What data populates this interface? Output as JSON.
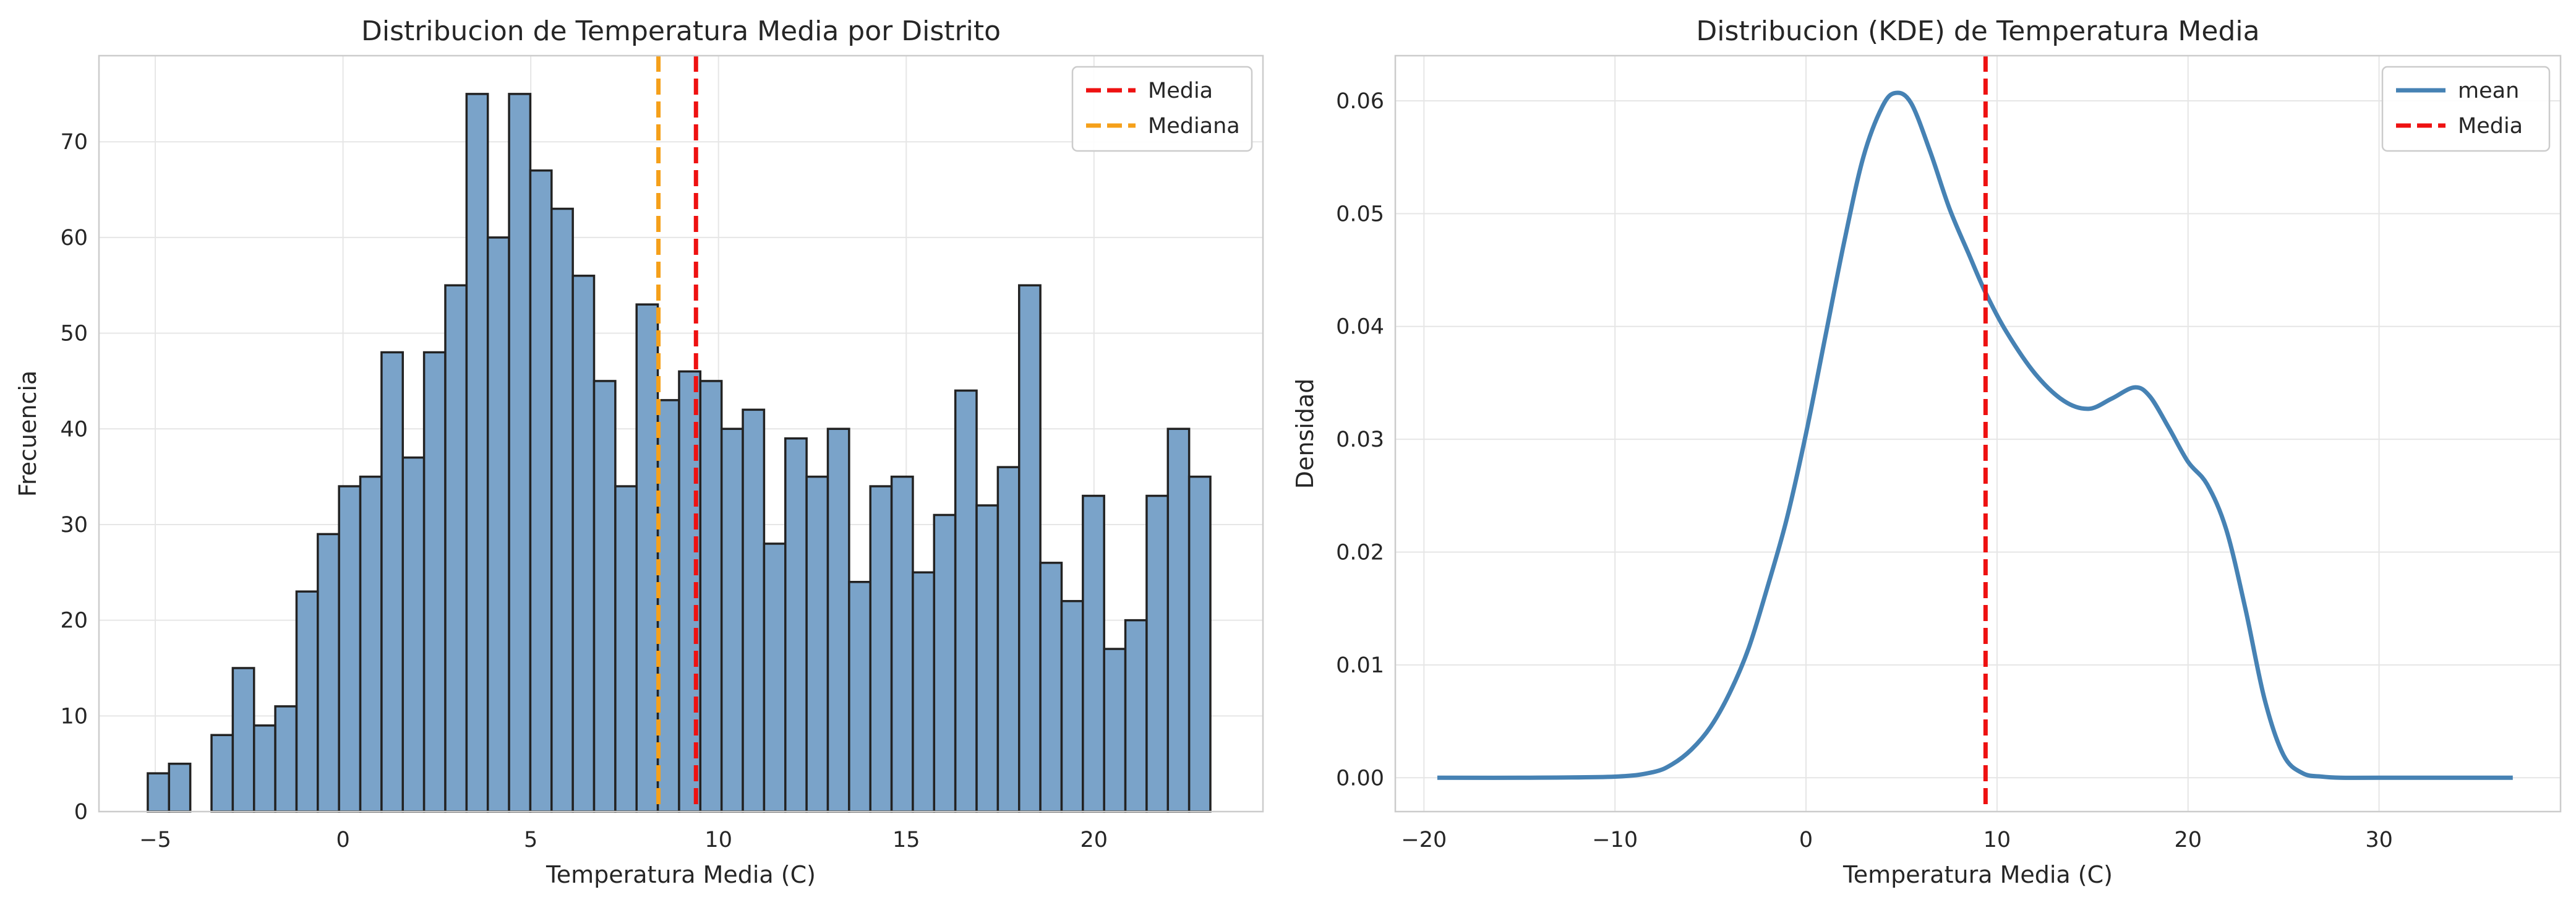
{
  "chart_data": [
    {
      "type": "bar",
      "title": "Distribucion de Temperatura Media por Distrito",
      "xlabel": "Temperatura Media (C)",
      "ylabel": "Frecuencia",
      "xlim": [
        -6.5,
        24.5
      ],
      "ylim": [
        0,
        79
      ],
      "xticks": [
        -5,
        0,
        5,
        10,
        15,
        20
      ],
      "yticks": [
        0,
        10,
        20,
        30,
        40,
        50,
        60,
        70
      ],
      "grid": true,
      "legend_position": "top-right",
      "bar_color": "#7aa3c9",
      "bar_edge_color": "#222222",
      "bins": {
        "start": -5.2,
        "width": 0.566,
        "counts": [
          4,
          5,
          0,
          8,
          15,
          9,
          11,
          23,
          29,
          34,
          35,
          48,
          37,
          48,
          55,
          75,
          60,
          75,
          67,
          63,
          56,
          45,
          34,
          53,
          43,
          46,
          45,
          40,
          42,
          28,
          39,
          35,
          40,
          24,
          34,
          35,
          25,
          31,
          44,
          32,
          36,
          55,
          26,
          22,
          33,
          17,
          20,
          33,
          40,
          35
        ]
      },
      "lines": [
        {
          "name": "Media",
          "x": 9.4,
          "color": "#ee1111"
        },
        {
          "name": "Mediana",
          "x": 8.4,
          "color": "#f5a01a"
        }
      ]
    },
    {
      "type": "line",
      "title": "Distribucion (KDE) de Temperatura Media",
      "xlabel": "Temperatura Media (C)",
      "ylabel": "Densidad",
      "xlim": [
        -21.5,
        39.5
      ],
      "ylim": [
        -0.003,
        0.064
      ],
      "xticks": [
        -20,
        -10,
        0,
        10,
        20,
        30
      ],
      "yticks": [
        0.0,
        0.01,
        0.02,
        0.03,
        0.04,
        0.05,
        0.06
      ],
      "grid": true,
      "legend_position": "top-right",
      "series": [
        {
          "name": "mean",
          "color": "#4682b4",
          "x": [
            -19.3,
            -15,
            -10,
            -8,
            -7,
            -6,
            -5,
            -4,
            -3,
            -2,
            -1,
            0,
            1,
            2,
            3,
            4,
            4.7,
            5.5,
            6.5,
            7.5,
            8.5,
            9.4,
            10.5,
            12,
            13.5,
            14.8,
            16,
            17.2,
            18,
            19,
            20,
            21,
            22,
            23,
            24,
            25,
            26,
            27,
            28,
            30,
            37
          ],
          "y": [
            0,
            0,
            0.0001,
            0.0005,
            0.0012,
            0.0025,
            0.0045,
            0.0075,
            0.0115,
            0.017,
            0.023,
            0.0305,
            0.039,
            0.0475,
            0.055,
            0.0595,
            0.0607,
            0.0598,
            0.0555,
            0.0505,
            0.0465,
            0.043,
            0.0395,
            0.0358,
            0.0334,
            0.0327,
            0.0336,
            0.0346,
            0.0338,
            0.031,
            0.028,
            0.026,
            0.022,
            0.015,
            0.007,
            0.002,
            0.0004,
            0.0001,
            0,
            0,
            0
          ]
        }
      ],
      "lines": [
        {
          "name": "Media",
          "x": 9.4,
          "color": "#ee1111"
        }
      ]
    }
  ]
}
